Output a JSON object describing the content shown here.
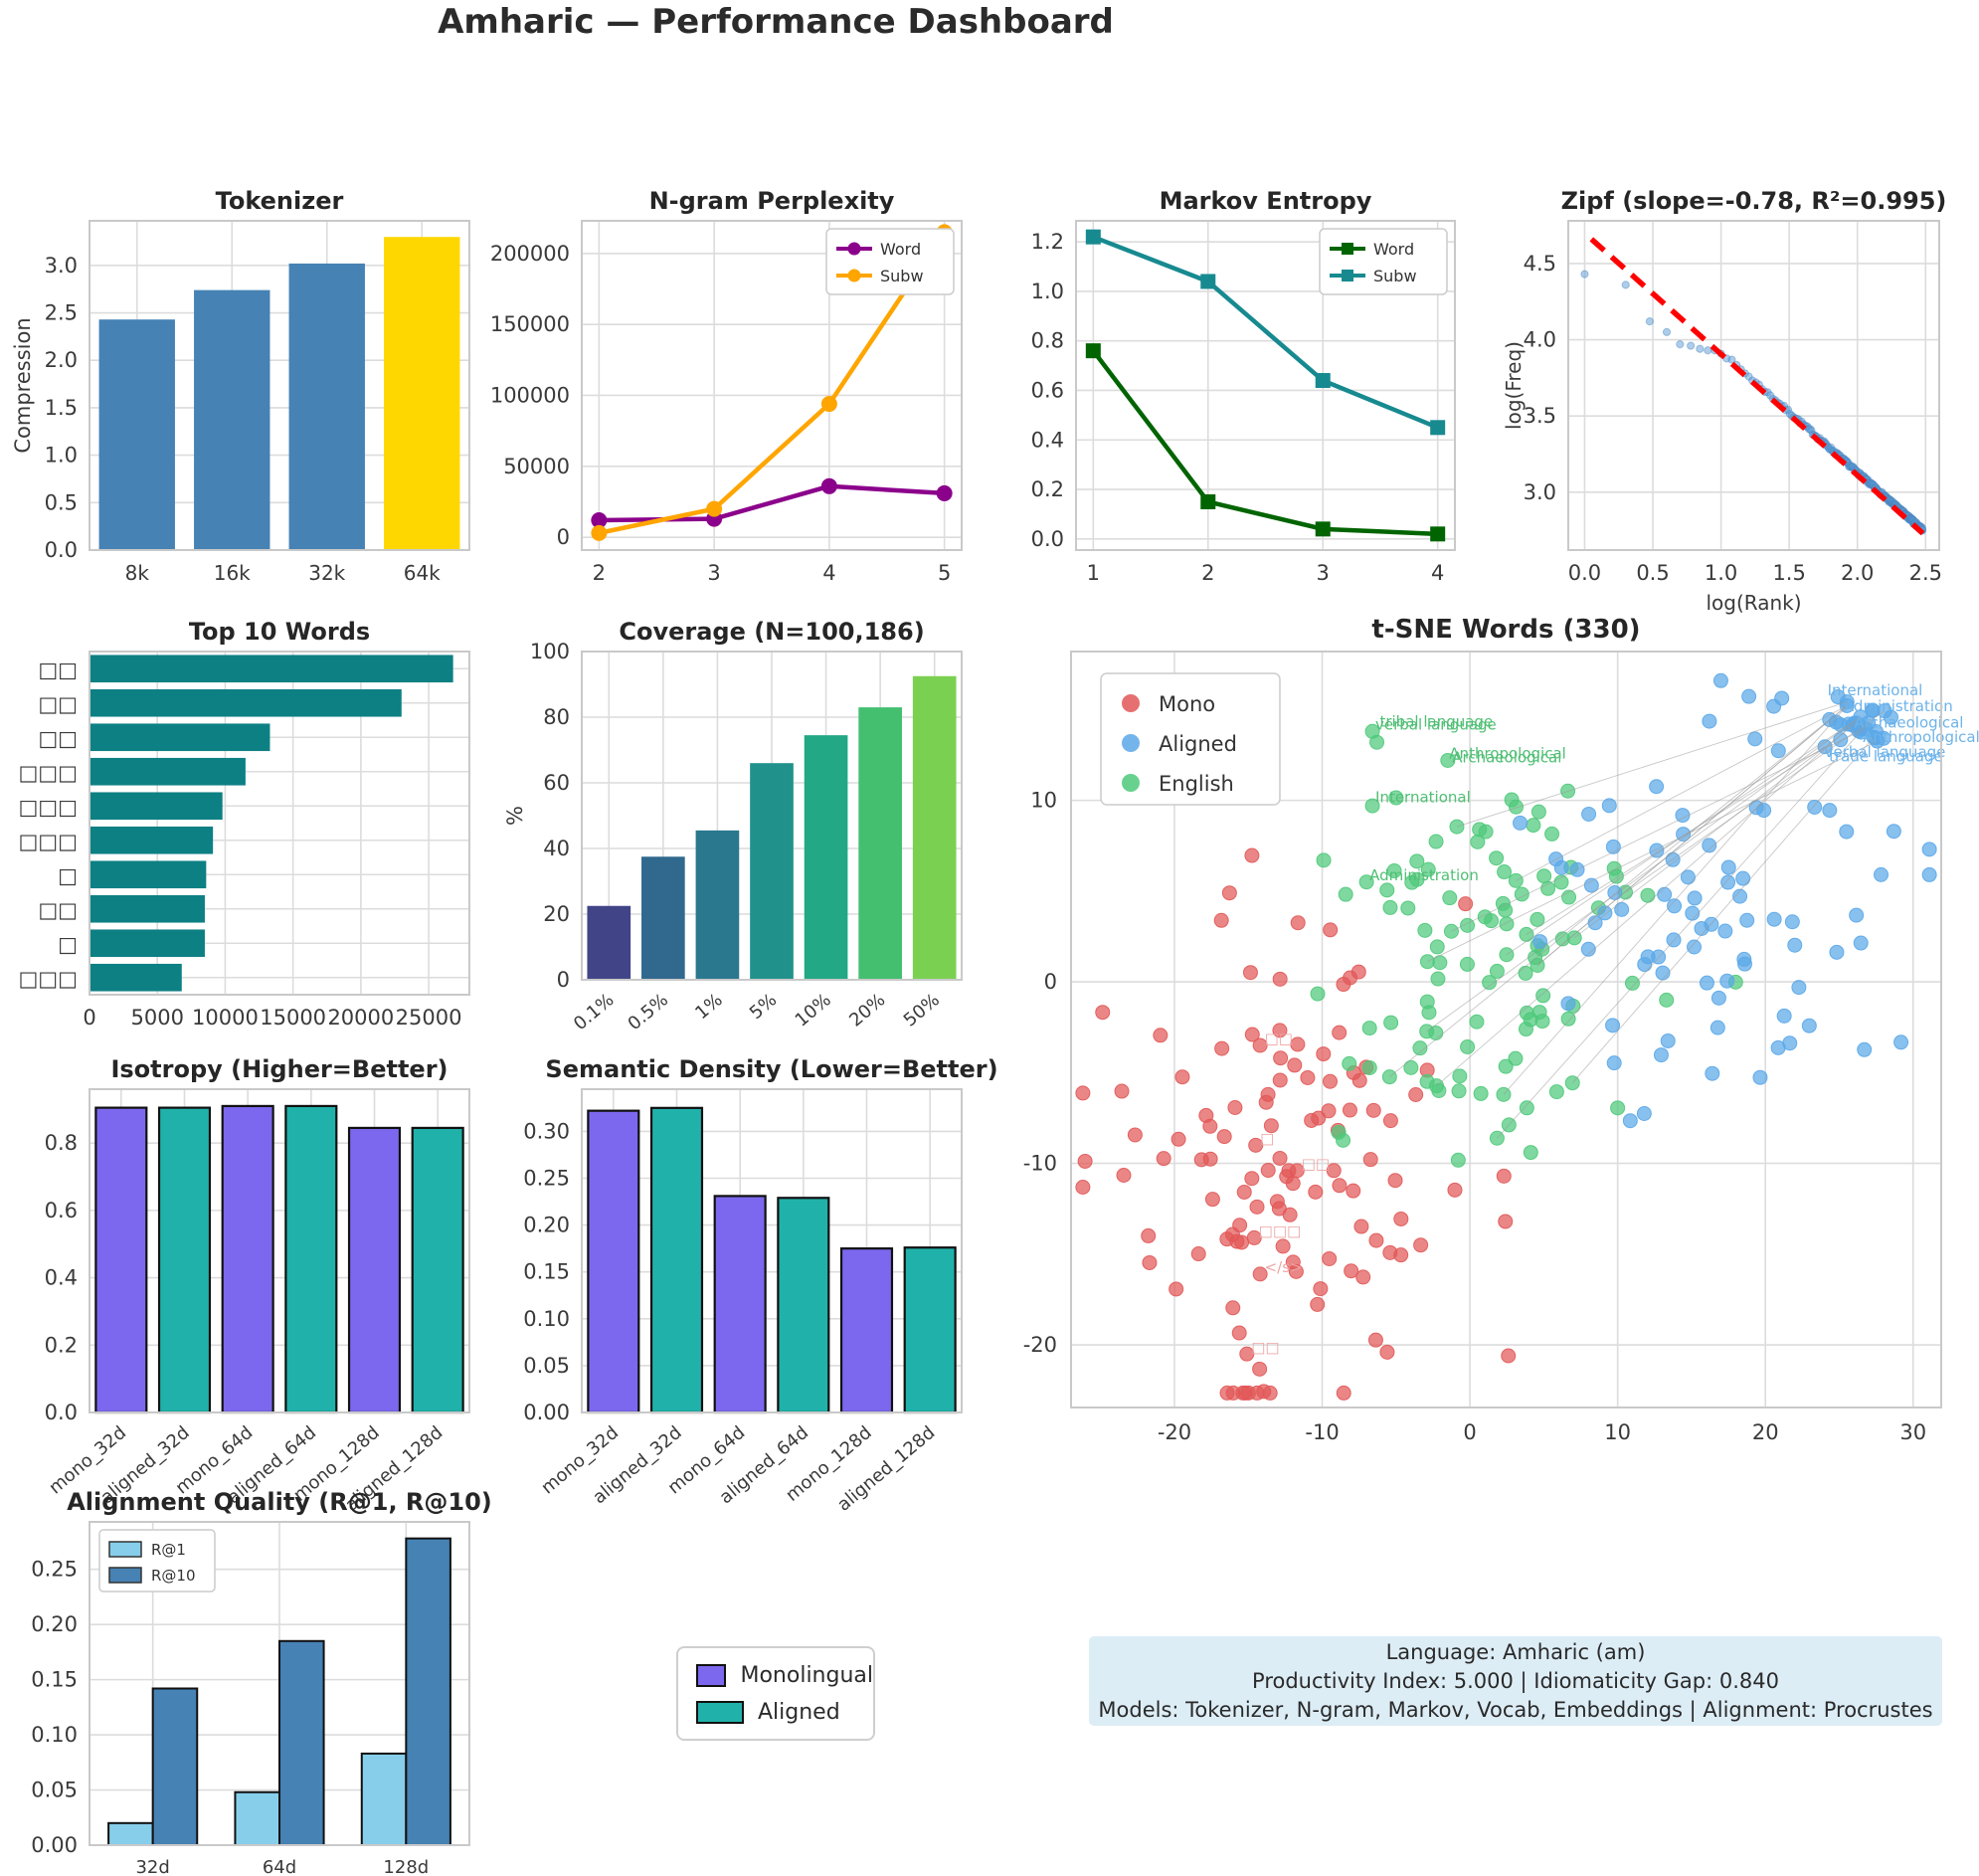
{
  "page": {
    "title": "Amharic — Performance Dashboard"
  },
  "legend_box": {
    "items": [
      {
        "label": "Monolingual",
        "color": "#7b68ee"
      },
      {
        "label": "Aligned",
        "color": "#20b2aa"
      }
    ]
  },
  "info_box": {
    "line1": "Language: Amharic (am)",
    "line2": "Productivity Index: 5.000  |  Idiomaticity Gap: 0.840",
    "line3": "Models: Tokenizer, N-gram, Markov, Vocab, Embeddings  |  Alignment: Procrustes"
  },
  "chart_data": {
    "tokenizer": {
      "type": "bar",
      "title": "Tokenizer",
      "ylabel": "Compression",
      "categories": [
        "8k",
        "16k",
        "32k",
        "64k"
      ],
      "values": [
        2.43,
        2.74,
        3.02,
        3.3
      ],
      "bar_colors": [
        "#4682b4",
        "#4682b4",
        "#4682b4",
        "#ffd700"
      ],
      "ylim": [
        0,
        3.47
      ],
      "yticks": [
        "0.0",
        "0.5",
        "1.0",
        "1.5",
        "2.0",
        "2.5",
        "3.0"
      ]
    },
    "ngram": {
      "type": "line",
      "title": "N-gram Perplexity",
      "x": [
        2,
        3,
        4,
        5
      ],
      "xticks": [
        "2",
        "3",
        "4",
        "5"
      ],
      "series": [
        {
          "name": "Word",
          "color": "#8b008b",
          "marker": "circle",
          "values": [
            12000,
            13000,
            36000,
            31000
          ]
        },
        {
          "name": "Subw",
          "color": "#ffa500",
          "marker": "circle",
          "values": [
            3000,
            20000,
            94000,
            215000
          ]
        }
      ],
      "yticks": [
        "0",
        "50000",
        "100000",
        "150000",
        "200000"
      ],
      "ylim": [
        -9000,
        223000
      ],
      "xlim": [
        1.85,
        5.15
      ],
      "legend_position": "top-right"
    },
    "markov": {
      "type": "line",
      "title": "Markov Entropy",
      "x": [
        1,
        2,
        3,
        4
      ],
      "xticks": [
        "1",
        "2",
        "3",
        "4"
      ],
      "series": [
        {
          "name": "Word",
          "color": "#006400",
          "marker": "square",
          "values": [
            0.76,
            0.15,
            0.04,
            0.02
          ]
        },
        {
          "name": "Subw",
          "color": "#178a90",
          "marker": "square",
          "values": [
            1.22,
            1.04,
            0.64,
            0.45
          ]
        }
      ],
      "yticks": [
        "0.0",
        "0.2",
        "0.4",
        "0.6",
        "0.8",
        "1.0",
        "1.2"
      ],
      "ylim": [
        -0.045,
        1.285
      ],
      "xlim": [
        0.85,
        4.15
      ],
      "legend_position": "top-right"
    },
    "zipf": {
      "type": "scatter",
      "title": "Zipf (slope=-0.78, R²=0.995)",
      "xlabel": "log(Rank)",
      "ylabel": "log(Freq)",
      "xticks": [
        "0.0",
        "0.5",
        "1.0",
        "1.5",
        "2.0",
        "2.5"
      ],
      "yticks": [
        "3.0",
        "3.5",
        "4.0",
        "4.5"
      ],
      "xlim": [
        -0.12,
        2.6
      ],
      "ylim": [
        2.62,
        4.78
      ],
      "point_color": "#5b9bd5",
      "head_points": [
        [
          0.0,
          4.43
        ],
        [
          0.301,
          4.36
        ],
        [
          0.477,
          4.12
        ],
        [
          0.602,
          4.05
        ],
        [
          0.699,
          3.97
        ],
        [
          0.778,
          3.96
        ],
        [
          0.845,
          3.94
        ],
        [
          0.903,
          3.93
        ],
        [
          0.954,
          3.93
        ]
      ],
      "tail": {
        "ranks": 300,
        "y_at_x1": 3.92,
        "slope": -0.79,
        "noise": 0.012,
        "seed": 7
      },
      "trend": {
        "x1": 0.05,
        "y1": 4.66,
        "x2": 2.48,
        "y2": 2.73,
        "color": "#ff0000",
        "dashed": true
      }
    },
    "topwords": {
      "type": "barh",
      "title": "Top 10 Words",
      "categories": [
        "□□",
        "□□",
        "□□",
        "□□□",
        "□□□",
        "□□□",
        "□",
        "□□",
        "□",
        "□□□"
      ],
      "values": [
        26800,
        23000,
        13300,
        11500,
        9800,
        9100,
        8600,
        8500,
        8500,
        6800
      ],
      "color": "#0d8084",
      "xticks": [
        "0",
        "5000",
        "10000",
        "15000",
        "20000",
        "25000"
      ],
      "xlim": [
        0,
        28000
      ]
    },
    "coverage": {
      "type": "bar",
      "title": "Coverage (N=100,186)",
      "ylabel": "%",
      "categories": [
        "0.1%",
        "0.5%",
        "1%",
        "5%",
        "10%",
        "20%",
        "50%"
      ],
      "values": [
        22.5,
        37.5,
        45.5,
        66,
        74.5,
        83,
        92.5
      ],
      "bar_colors": [
        "#414487",
        "#31688e",
        "#2a788e",
        "#21918c",
        "#22a884",
        "#44bf70",
        "#7ad151"
      ],
      "ylim": [
        0,
        100
      ],
      "yticks": [
        "0",
        "20",
        "40",
        "60",
        "80",
        "100"
      ],
      "rotate_xticklabels": true
    },
    "tsne": {
      "type": "scatter",
      "title": "t-SNE Words (330)",
      "legend": [
        {
          "label": "Mono",
          "color": "#e25757"
        },
        {
          "label": "Aligned",
          "color": "#5aa7e8"
        },
        {
          "label": "English",
          "color": "#4ec97a"
        }
      ],
      "xticks": [
        "-20",
        "-10",
        "0",
        "10",
        "20",
        "30"
      ],
      "yticks": [
        "10",
        "0",
        "-10",
        "-20"
      ],
      "xlim": [
        -27,
        31.9
      ],
      "ylim": [
        -23.45,
        18.2
      ],
      "clusters": [
        {
          "name": "mono",
          "color": "#e25757",
          "count": 100,
          "cx": -12.5,
          "cy": -7.5,
          "sx": 5.4,
          "sy": 5.8,
          "seed": 11
        },
        {
          "name": "english",
          "color": "#4ec97a",
          "count": 105,
          "cx": 1.5,
          "cy": 0.8,
          "sx": 5.6,
          "sy": 5.0,
          "seed": 22
        },
        {
          "name": "aligned",
          "color": "#5aa7e8",
          "count": 85,
          "cx": 16.0,
          "cy": 3.5,
          "sx": 6.2,
          "sy": 5.2,
          "seed": 33
        },
        {
          "name": "aligned-blob",
          "color": "#5aa7e8",
          "count": 25,
          "cx": 26.3,
          "cy": 14.2,
          "sx": 1.3,
          "sy": 0.9,
          "seed": 44
        },
        {
          "name": "mono-tail",
          "color": "#e25757",
          "count": 8,
          "cx": -14.6,
          "cy": -23.0,
          "sx": 0.8,
          "sy": 0.6,
          "seed": 55
        }
      ],
      "extra_points": [
        {
          "color": "#e25757",
          "pts": [
            [
              2.3,
              -10.7
            ],
            [
              2.4,
              -13.2
            ],
            [
              2.6,
              -20.6
            ],
            [
              -5.6,
              -20.4
            ],
            [
              -0.3,
              4.3
            ],
            [
              -14.2,
              -3.5
            ],
            [
              -14.5,
              -9.0
            ],
            [
              -11.7,
              -10.4
            ],
            [
              -14.6,
              -14.1
            ],
            [
              -14.2,
              -16.1
            ],
            [
              -15.1,
              -20.5
            ]
          ]
        },
        {
          "color": "#4ec97a",
          "pts": [
            [
              -6.6,
              13.8
            ],
            [
              -1.5,
              12.2
            ],
            [
              -6.6,
              9.7
            ],
            [
              -7.0,
              5.5
            ],
            [
              -9.9,
              6.7
            ],
            [
              -6.3,
              13.2
            ]
          ]
        }
      ],
      "connectors": {
        "count": 16,
        "seed": 77,
        "color": "#999999"
      },
      "annotations": [
        {
          "text": "verbal language",
          "x": -6.4,
          "y": 13.9,
          "color": "#4fbf74"
        },
        {
          "text": "tribal language",
          "x": -6.1,
          "y": 14.05,
          "color": "#4fbf74"
        },
        {
          "text": "Anthropological",
          "x": -1.4,
          "y": 12.3,
          "color": "#4fbf74"
        },
        {
          "text": "Archaeological",
          "x": -1.2,
          "y": 12.1,
          "color": "#4fbf74"
        },
        {
          "text": "International",
          "x": -6.4,
          "y": 9.9,
          "color": "#4fbf74"
        },
        {
          "text": "Administration",
          "x": -6.8,
          "y": 5.6,
          "color": "#4fbf74"
        },
        {
          "text": "International",
          "x": 24.2,
          "y": 15.8,
          "color": "#6db3ea"
        },
        {
          "text": "Administration",
          "x": 25.3,
          "y": 14.9,
          "color": "#6db3ea"
        },
        {
          "text": "Archaeological",
          "x": 26.0,
          "y": 14.0,
          "color": "#6db3ea"
        },
        {
          "text": "Anthropological",
          "x": 26.6,
          "y": 13.2,
          "color": "#6db3ea"
        },
        {
          "text": "verbal language",
          "x": 24.0,
          "y": 12.4,
          "color": "#6db3ea"
        },
        {
          "text": "trade language",
          "x": 24.3,
          "y": 12.15,
          "color": "#6db3ea"
        },
        {
          "text": "□□",
          "x": -13.9,
          "y": -3.4,
          "color": "#eda5a5"
        },
        {
          "text": "□",
          "x": -14.2,
          "y": -8.9,
          "color": "#eda5a5"
        },
        {
          "text": "□□",
          "x": -11.4,
          "y": -10.3,
          "color": "#eda5a5"
        },
        {
          "text": "□□□",
          "x": -14.3,
          "y": -14.0,
          "color": "#eda5a5"
        },
        {
          "text": "</s>",
          "x": -13.9,
          "y": -16.0,
          "color": "#eda5a5"
        },
        {
          "text": "□□",
          "x": -14.8,
          "y": -20.4,
          "color": "#eda5a5"
        }
      ]
    },
    "isotropy": {
      "type": "bar",
      "title": "Isotropy (Higher=Better)",
      "categories": [
        "mono_32d",
        "aligned_32d",
        "mono_64d",
        "aligned_64d",
        "mono_128d",
        "aligned_128d"
      ],
      "values": [
        0.905,
        0.905,
        0.91,
        0.91,
        0.845,
        0.845
      ],
      "bar_colors": [
        "#7b68ee",
        "#20b2aa",
        "#7b68ee",
        "#20b2aa",
        "#7b68ee",
        "#20b2aa"
      ],
      "edge_color": "#111111",
      "ylim": [
        0,
        0.96
      ],
      "yticks": [
        "0.0",
        "0.2",
        "0.4",
        "0.6",
        "0.8"
      ],
      "rotate_xticklabels": true
    },
    "semdensity": {
      "type": "bar",
      "title": "Semantic Density (Lower=Better)",
      "categories": [
        "mono_32d",
        "aligned_32d",
        "mono_64d",
        "aligned_64d",
        "mono_128d",
        "aligned_128d"
      ],
      "values": [
        0.322,
        0.325,
        0.231,
        0.229,
        0.175,
        0.176
      ],
      "bar_colors": [
        "#7b68ee",
        "#20b2aa",
        "#7b68ee",
        "#20b2aa",
        "#7b68ee",
        "#20b2aa"
      ],
      "edge_color": "#111111",
      "ylim": [
        0,
        0.345
      ],
      "yticks": [
        "0.00",
        "0.05",
        "0.10",
        "0.15",
        "0.20",
        "0.25",
        "0.30"
      ],
      "rotate_xticklabels": true
    },
    "alignment": {
      "type": "grouped_bar",
      "title": "Alignment Quality (R@1, R@10)",
      "categories": [
        "32d",
        "64d",
        "128d"
      ],
      "series": [
        {
          "name": "R@1",
          "color": "#87ceeb",
          "values": [
            0.02,
            0.048,
            0.083
          ]
        },
        {
          "name": "R@10",
          "color": "#4682b4",
          "values": [
            0.142,
            0.185,
            0.278
          ]
        }
      ],
      "edge_color": "#111111",
      "ylim": [
        0,
        0.293
      ],
      "yticks": [
        "0.00",
        "0.05",
        "0.10",
        "0.15",
        "0.20",
        "0.25"
      ],
      "legend_position": "top-left"
    }
  }
}
